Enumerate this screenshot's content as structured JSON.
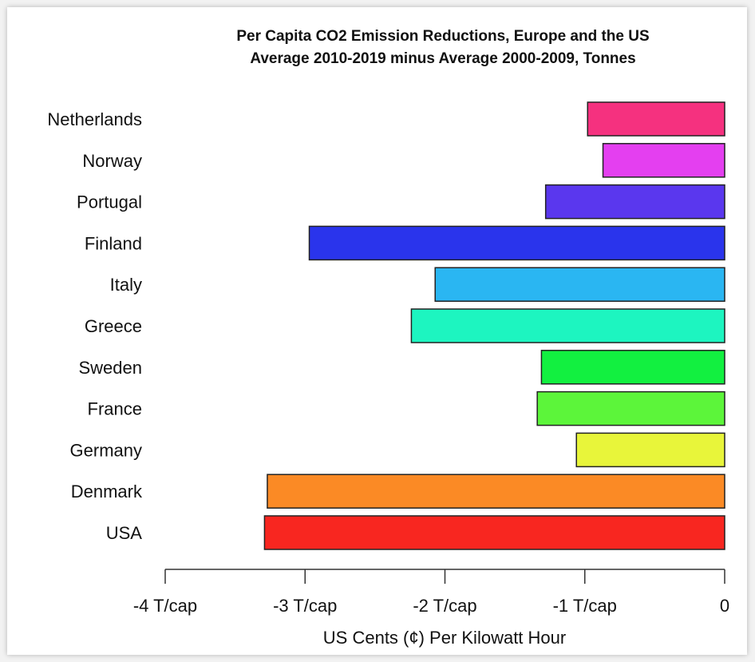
{
  "chart_data": {
    "type": "bar",
    "orientation": "horizontal",
    "title": "Per Capita CO2 Emission Reductions, Europe and the US",
    "subtitle": "Average 2010-2019 minus Average 2000-2009, Tonnes",
    "xlabel": "US Cents (¢) Per Kilowatt Hour",
    "ylabel": "",
    "xlim": [
      -4,
      0
    ],
    "x_ticks": [
      -4,
      -3,
      -2,
      -1,
      0
    ],
    "x_tick_labels": [
      "-4 T/cap",
      "-3 T/cap",
      "-2 T/cap",
      "-1 T/cap",
      "0"
    ],
    "grid": false,
    "categories": [
      "Netherlands",
      "Norway",
      "Portugal",
      "Finland",
      "Italy",
      "Greece",
      "Sweden",
      "France",
      "Germany",
      "Denmark",
      "USA"
    ],
    "values": [
      -0.98,
      -0.87,
      -1.28,
      -2.97,
      -2.07,
      -2.24,
      -1.31,
      -1.34,
      -1.06,
      -3.27,
      -3.29
    ],
    "colors": [
      "#f5317f",
      "#e43ff0",
      "#5a37ee",
      "#2a34ec",
      "#2ab6f2",
      "#1df5c0",
      "#12f040",
      "#5cf53a",
      "#e8f53a",
      "#fb8a25",
      "#f82620"
    ]
  }
}
